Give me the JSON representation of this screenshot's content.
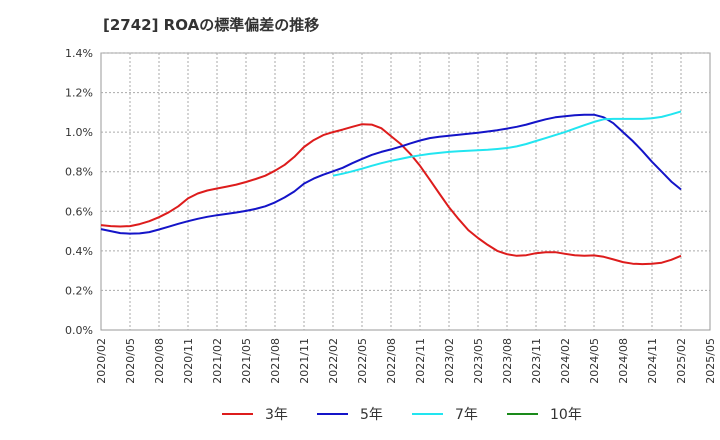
{
  "chart_data": {
    "type": "line",
    "title": "[2742]  ROAの標準偏差の推移",
    "xlabel": "",
    "ylabel": "",
    "ylim": [
      0,
      1.4
    ],
    "xlim": [
      "2020/02",
      "2025/05"
    ],
    "y_ticks": [
      "0.0%",
      "0.2%",
      "0.4%",
      "0.6%",
      "0.8%",
      "1.0%",
      "1.2%",
      "1.4%"
    ],
    "x_ticks": [
      "2020/02",
      "2020/05",
      "2020/08",
      "2020/11",
      "2021/02",
      "2021/05",
      "2021/08",
      "2021/11",
      "2022/02",
      "2022/05",
      "2022/08",
      "2022/11",
      "2023/02",
      "2023/05",
      "2023/08",
      "2023/11",
      "2024/02",
      "2024/05",
      "2024/08",
      "2024/11",
      "2025/02",
      "2025/05"
    ],
    "grid": true,
    "legend_position": "bottom",
    "series": [
      {
        "name": "3年",
        "color": "#dd1c1c",
        "points": [
          [
            "2020/02",
            0.53
          ],
          [
            "2020/03",
            0.525
          ],
          [
            "2020/04",
            0.523
          ],
          [
            "2020/05",
            0.525
          ],
          [
            "2020/06",
            0.535
          ],
          [
            "2020/07",
            0.55
          ],
          [
            "2020/08",
            0.57
          ],
          [
            "2020/09",
            0.595
          ],
          [
            "2020/10",
            0.625
          ],
          [
            "2020/11",
            0.665
          ],
          [
            "2020/12",
            0.69
          ],
          [
            "2021/01",
            0.705
          ],
          [
            "2021/02",
            0.715
          ],
          [
            "2021/03",
            0.725
          ],
          [
            "2021/04",
            0.735
          ],
          [
            "2021/05",
            0.748
          ],
          [
            "2021/06",
            0.763
          ],
          [
            "2021/07",
            0.78
          ],
          [
            "2021/08",
            0.805
          ],
          [
            "2021/09",
            0.835
          ],
          [
            "2021/10",
            0.875
          ],
          [
            "2021/11",
            0.925
          ],
          [
            "2021/12",
            0.96
          ],
          [
            "2022/01",
            0.985
          ],
          [
            "2022/02",
            1.0
          ],
          [
            "2022/03",
            1.013
          ],
          [
            "2022/04",
            1.027
          ],
          [
            "2022/05",
            1.04
          ],
          [
            "2022/06",
            1.038
          ],
          [
            "2022/07",
            1.02
          ],
          [
            "2022/08",
            0.98
          ],
          [
            "2022/09",
            0.94
          ],
          [
            "2022/10",
            0.89
          ],
          [
            "2022/11",
            0.83
          ],
          [
            "2022/12",
            0.76
          ],
          [
            "2023/01",
            0.69
          ],
          [
            "2023/02",
            0.62
          ],
          [
            "2023/03",
            0.56
          ],
          [
            "2023/04",
            0.505
          ],
          [
            "2023/05",
            0.465
          ],
          [
            "2023/06",
            0.43
          ],
          [
            "2023/07",
            0.4
          ],
          [
            "2023/08",
            0.383
          ],
          [
            "2023/09",
            0.375
          ],
          [
            "2023/10",
            0.378
          ],
          [
            "2023/11",
            0.388
          ],
          [
            "2023/12",
            0.393
          ],
          [
            "2024/01",
            0.393
          ],
          [
            "2024/02",
            0.385
          ],
          [
            "2024/03",
            0.378
          ],
          [
            "2024/04",
            0.375
          ],
          [
            "2024/05",
            0.377
          ],
          [
            "2024/06",
            0.37
          ],
          [
            "2024/07",
            0.357
          ],
          [
            "2024/08",
            0.343
          ],
          [
            "2024/09",
            0.335
          ],
          [
            "2024/10",
            0.333
          ],
          [
            "2024/11",
            0.335
          ],
          [
            "2024/12",
            0.34
          ],
          [
            "2025/01",
            0.355
          ],
          [
            "2025/02",
            0.375
          ]
        ]
      },
      {
        "name": "5年",
        "color": "#1414c8",
        "points": [
          [
            "2020/02",
            0.51
          ],
          [
            "2020/03",
            0.5
          ],
          [
            "2020/04",
            0.49
          ],
          [
            "2020/05",
            0.487
          ],
          [
            "2020/06",
            0.488
          ],
          [
            "2020/07",
            0.495
          ],
          [
            "2020/08",
            0.508
          ],
          [
            "2020/09",
            0.522
          ],
          [
            "2020/10",
            0.537
          ],
          [
            "2020/11",
            0.55
          ],
          [
            "2020/12",
            0.562
          ],
          [
            "2021/01",
            0.572
          ],
          [
            "2021/02",
            0.58
          ],
          [
            "2021/03",
            0.587
          ],
          [
            "2021/04",
            0.594
          ],
          [
            "2021/05",
            0.602
          ],
          [
            "2021/06",
            0.612
          ],
          [
            "2021/07",
            0.625
          ],
          [
            "2021/08",
            0.645
          ],
          [
            "2021/09",
            0.67
          ],
          [
            "2021/10",
            0.7
          ],
          [
            "2021/11",
            0.74
          ],
          [
            "2021/12",
            0.765
          ],
          [
            "2022/01",
            0.785
          ],
          [
            "2022/02",
            0.802
          ],
          [
            "2022/03",
            0.82
          ],
          [
            "2022/04",
            0.843
          ],
          [
            "2022/05",
            0.865
          ],
          [
            "2022/06",
            0.885
          ],
          [
            "2022/07",
            0.9
          ],
          [
            "2022/08",
            0.913
          ],
          [
            "2022/09",
            0.927
          ],
          [
            "2022/10",
            0.943
          ],
          [
            "2022/11",
            0.958
          ],
          [
            "2022/12",
            0.97
          ],
          [
            "2023/01",
            0.977
          ],
          [
            "2023/02",
            0.982
          ],
          [
            "2023/03",
            0.987
          ],
          [
            "2023/04",
            0.992
          ],
          [
            "2023/05",
            0.997
          ],
          [
            "2023/06",
            1.003
          ],
          [
            "2023/07",
            1.01
          ],
          [
            "2023/08",
            1.018
          ],
          [
            "2023/09",
            1.027
          ],
          [
            "2023/10",
            1.038
          ],
          [
            "2023/11",
            1.052
          ],
          [
            "2023/12",
            1.065
          ],
          [
            "2024/01",
            1.075
          ],
          [
            "2024/02",
            1.08
          ],
          [
            "2024/03",
            1.085
          ],
          [
            "2024/04",
            1.088
          ],
          [
            "2024/05",
            1.088
          ],
          [
            "2024/06",
            1.075
          ],
          [
            "2024/07",
            1.045
          ],
          [
            "2024/08",
            1.0
          ],
          [
            "2024/09",
            0.955
          ],
          [
            "2024/10",
            0.905
          ],
          [
            "2024/11",
            0.85
          ],
          [
            "2024/12",
            0.8
          ],
          [
            "2025/01",
            0.75
          ],
          [
            "2025/02",
            0.71
          ]
        ]
      },
      {
        "name": "7年",
        "color": "#22e5f0",
        "points": [
          [
            "2022/02",
            0.78
          ],
          [
            "2022/03",
            0.79
          ],
          [
            "2022/04",
            0.802
          ],
          [
            "2022/05",
            0.815
          ],
          [
            "2022/06",
            0.83
          ],
          [
            "2022/07",
            0.843
          ],
          [
            "2022/08",
            0.855
          ],
          [
            "2022/09",
            0.865
          ],
          [
            "2022/10",
            0.875
          ],
          [
            "2022/11",
            0.883
          ],
          [
            "2022/12",
            0.89
          ],
          [
            "2023/01",
            0.895
          ],
          [
            "2023/02",
            0.9
          ],
          [
            "2023/03",
            0.903
          ],
          [
            "2023/04",
            0.906
          ],
          [
            "2023/05",
            0.908
          ],
          [
            "2023/06",
            0.911
          ],
          [
            "2023/07",
            0.915
          ],
          [
            "2023/08",
            0.92
          ],
          [
            "2023/09",
            0.928
          ],
          [
            "2023/10",
            0.94
          ],
          [
            "2023/11",
            0.955
          ],
          [
            "2023/12",
            0.97
          ],
          [
            "2024/01",
            0.985
          ],
          [
            "2024/02",
            1.0
          ],
          [
            "2024/03",
            1.018
          ],
          [
            "2024/04",
            1.035
          ],
          [
            "2024/05",
            1.052
          ],
          [
            "2024/06",
            1.065
          ],
          [
            "2024/07",
            1.067
          ],
          [
            "2024/08",
            1.067
          ],
          [
            "2024/09",
            1.067
          ],
          [
            "2024/10",
            1.067
          ],
          [
            "2024/11",
            1.07
          ],
          [
            "2024/12",
            1.077
          ],
          [
            "2025/01",
            1.09
          ],
          [
            "2025/02",
            1.105
          ]
        ]
      },
      {
        "name": "10年",
        "color": "#1a8a1a",
        "points": []
      }
    ]
  }
}
